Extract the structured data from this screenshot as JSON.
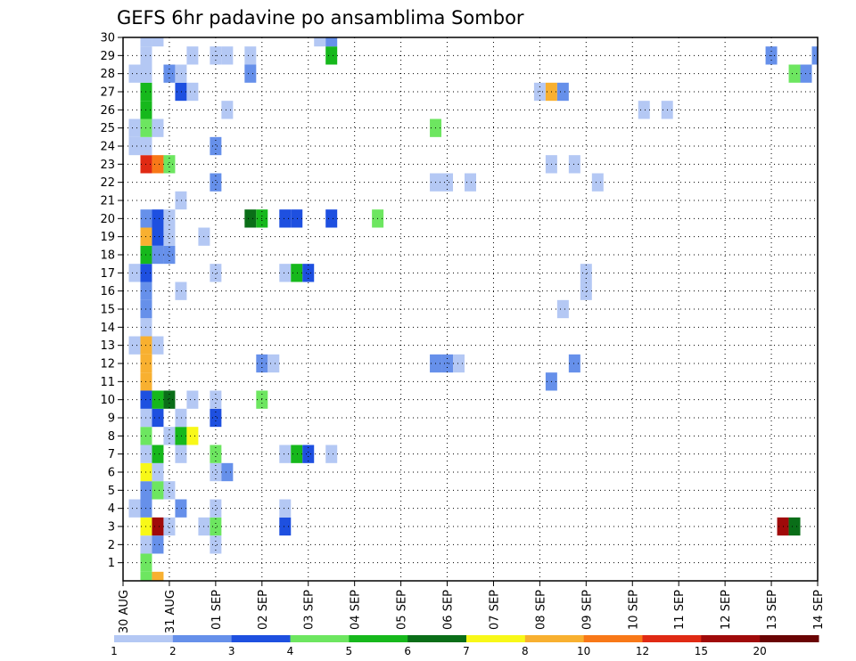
{
  "chart_data": {
    "type": "heatmap",
    "title": "GEFS 6hr padavine po ansamblima Sombor",
    "xlabel": "",
    "ylabel": "",
    "x_ticks": [
      "30 AUG",
      "31 AUG",
      "01 SEP",
      "02 SEP",
      "03 SEP",
      "04 SEP",
      "05 SEP",
      "06 SEP",
      "07 SEP",
      "08 SEP",
      "09 SEP",
      "10 SEP",
      "11 SEP",
      "12 SEP",
      "13 SEP",
      "14 SEP"
    ],
    "y_ticks": [
      "1",
      "2",
      "3",
      "4",
      "5",
      "6",
      "7",
      "8",
      "9",
      "10",
      "11",
      "12",
      "13",
      "14",
      "15",
      "16",
      "17",
      "18",
      "19",
      "20",
      "21",
      "22",
      "23",
      "24",
      "25",
      "26",
      "27",
      "28",
      "29",
      "30"
    ],
    "xlim": [
      0,
      60
    ],
    "ylim": [
      0,
      30
    ],
    "grid": true,
    "colorbar": {
      "labels": [
        "1",
        "2",
        "3",
        "4",
        "5",
        "6",
        "7",
        "8",
        "10",
        "12",
        "15",
        "20"
      ],
      "colors": [
        "#b4c8f4",
        "#6690ea",
        "#1e50e0",
        "#6de660",
        "#16b81c",
        "#0a6e18",
        "#f8f818",
        "#f8b030",
        "#f87818",
        "#e02a14",
        "#a00a0a",
        "#6a0404"
      ]
    },
    "cells": [
      [
        2,
        0,
        "#6de660"
      ],
      [
        3,
        0,
        "#f8b030"
      ],
      [
        3,
        -1,
        "#6690ea"
      ],
      [
        7,
        -1,
        "#b4c8f4"
      ],
      [
        8,
        -1,
        "#16b81c"
      ],
      [
        2,
        1,
        "#6de660"
      ],
      [
        2,
        2,
        "#b4c8f4"
      ],
      [
        3,
        2,
        "#6690ea"
      ],
      [
        8,
        2,
        "#b4c8f4"
      ],
      [
        2,
        3,
        "#f8f818"
      ],
      [
        3,
        3,
        "#a00a0a"
      ],
      [
        4,
        3,
        "#b4c8f4"
      ],
      [
        7,
        3,
        "#b4c8f4"
      ],
      [
        8,
        3,
        "#6de660"
      ],
      [
        14,
        3,
        "#1e50e0"
      ],
      [
        57,
        3,
        "#a00a0a"
      ],
      [
        58,
        3,
        "#0a6e18"
      ],
      [
        1,
        4,
        "#b4c8f4"
      ],
      [
        2,
        4,
        "#6690ea"
      ],
      [
        5,
        4,
        "#6690ea"
      ],
      [
        8,
        4,
        "#b4c8f4"
      ],
      [
        14,
        4,
        "#b4c8f4"
      ],
      [
        2,
        5,
        "#6690ea"
      ],
      [
        3,
        5,
        "#6de660"
      ],
      [
        4,
        5,
        "#b4c8f4"
      ],
      [
        2,
        6,
        "#f8f818"
      ],
      [
        3,
        6,
        "#b4c8f4"
      ],
      [
        8,
        6,
        "#b4c8f4"
      ],
      [
        9,
        6,
        "#6690ea"
      ],
      [
        2,
        7,
        "#b4c8f4"
      ],
      [
        3,
        7,
        "#16b81c"
      ],
      [
        5,
        7,
        "#b4c8f4"
      ],
      [
        8,
        7,
        "#6de660"
      ],
      [
        14,
        7,
        "#b4c8f4"
      ],
      [
        15,
        7,
        "#16b81c"
      ],
      [
        16,
        7,
        "#1e50e0"
      ],
      [
        18,
        7,
        "#b4c8f4"
      ],
      [
        2,
        8,
        "#6de660"
      ],
      [
        4,
        8,
        "#b4c8f4"
      ],
      [
        5,
        8,
        "#16b81c"
      ],
      [
        6,
        8,
        "#f8f818"
      ],
      [
        2,
        9,
        "#b4c8f4"
      ],
      [
        3,
        9,
        "#1e50e0"
      ],
      [
        5,
        9,
        "#b4c8f4"
      ],
      [
        8,
        9,
        "#1e50e0"
      ],
      [
        2,
        10,
        "#1e50e0"
      ],
      [
        3,
        10,
        "#16b81c"
      ],
      [
        4,
        10,
        "#0a6e18"
      ],
      [
        6,
        10,
        "#b4c8f4"
      ],
      [
        8,
        10,
        "#b4c8f4"
      ],
      [
        12,
        10,
        "#6de660"
      ],
      [
        2,
        11,
        "#f8b030"
      ],
      [
        37,
        11,
        "#6690ea"
      ],
      [
        2,
        12,
        "#f8b030"
      ],
      [
        12,
        12,
        "#6690ea"
      ],
      [
        13,
        12,
        "#b4c8f4"
      ],
      [
        27,
        12,
        "#6690ea"
      ],
      [
        28,
        12,
        "#6690ea"
      ],
      [
        29,
        12,
        "#b4c8f4"
      ],
      [
        39,
        12,
        "#6690ea"
      ],
      [
        1,
        13,
        "#b4c8f4"
      ],
      [
        2,
        13,
        "#f8b030"
      ],
      [
        3,
        13,
        "#b4c8f4"
      ],
      [
        2,
        14,
        "#b4c8f4"
      ],
      [
        2,
        15,
        "#6690ea"
      ],
      [
        38,
        15,
        "#b4c8f4"
      ],
      [
        2,
        16,
        "#6690ea"
      ],
      [
        5,
        16,
        "#b4c8f4"
      ],
      [
        40,
        16,
        "#b4c8f4"
      ],
      [
        1,
        17,
        "#b4c8f4"
      ],
      [
        2,
        17,
        "#1e50e0"
      ],
      [
        8,
        17,
        "#b4c8f4"
      ],
      [
        14,
        17,
        "#b4c8f4"
      ],
      [
        15,
        17,
        "#16b81c"
      ],
      [
        16,
        17,
        "#1e50e0"
      ],
      [
        40,
        17,
        "#b4c8f4"
      ],
      [
        2,
        18,
        "#16b81c"
      ],
      [
        3,
        18,
        "#6690ea"
      ],
      [
        4,
        18,
        "#6690ea"
      ],
      [
        2,
        19,
        "#f8b030"
      ],
      [
        3,
        19,
        "#1e50e0"
      ],
      [
        4,
        19,
        "#b4c8f4"
      ],
      [
        7,
        19,
        "#b4c8f4"
      ],
      [
        2,
        20,
        "#6690ea"
      ],
      [
        3,
        20,
        "#1e50e0"
      ],
      [
        4,
        20,
        "#b4c8f4"
      ],
      [
        11,
        20,
        "#0a6e18"
      ],
      [
        12,
        20,
        "#16b81c"
      ],
      [
        14,
        20,
        "#1e50e0"
      ],
      [
        15,
        20,
        "#1e50e0"
      ],
      [
        18,
        20,
        "#1e50e0"
      ],
      [
        22,
        20,
        "#6de660"
      ],
      [
        5,
        21,
        "#b4c8f4"
      ],
      [
        8,
        22,
        "#6690ea"
      ],
      [
        27,
        22,
        "#b4c8f4"
      ],
      [
        28,
        22,
        "#b4c8f4"
      ],
      [
        30,
        22,
        "#b4c8f4"
      ],
      [
        41,
        22,
        "#b4c8f4"
      ],
      [
        2,
        23,
        "#e02a14"
      ],
      [
        3,
        23,
        "#f87818"
      ],
      [
        4,
        23,
        "#6de660"
      ],
      [
        37,
        23,
        "#b4c8f4"
      ],
      [
        39,
        23,
        "#b4c8f4"
      ],
      [
        1,
        24,
        "#b4c8f4"
      ],
      [
        2,
        24,
        "#b4c8f4"
      ],
      [
        8,
        24,
        "#6690ea"
      ],
      [
        1,
        25,
        "#b4c8f4"
      ],
      [
        2,
        25,
        "#6de660"
      ],
      [
        3,
        25,
        "#b4c8f4"
      ],
      [
        27,
        25,
        "#6de660"
      ],
      [
        2,
        26,
        "#16b81c"
      ],
      [
        9,
        26,
        "#b4c8f4"
      ],
      [
        45,
        26,
        "#b4c8f4"
      ],
      [
        47,
        26,
        "#b4c8f4"
      ],
      [
        2,
        27,
        "#16b81c"
      ],
      [
        5,
        27,
        "#1e50e0"
      ],
      [
        6,
        27,
        "#b4c8f4"
      ],
      [
        36,
        27,
        "#b4c8f4"
      ],
      [
        37,
        27,
        "#f8b030"
      ],
      [
        38,
        27,
        "#6690ea"
      ],
      [
        1,
        28,
        "#b4c8f4"
      ],
      [
        2,
        28,
        "#b4c8f4"
      ],
      [
        4,
        28,
        "#6690ea"
      ],
      [
        5,
        28,
        "#b4c8f4"
      ],
      [
        11,
        28,
        "#6690ea"
      ],
      [
        58,
        28,
        "#6de660"
      ],
      [
        59,
        28,
        "#6690ea"
      ],
      [
        2,
        29,
        "#b4c8f4"
      ],
      [
        6,
        29,
        "#b4c8f4"
      ],
      [
        8,
        29,
        "#b4c8f4"
      ],
      [
        9,
        29,
        "#b4c8f4"
      ],
      [
        11,
        29,
        "#b4c8f4"
      ],
      [
        18,
        29,
        "#16b81c"
      ],
      [
        56,
        29,
        "#6690ea"
      ],
      [
        60,
        29,
        "#6690ea"
      ],
      [
        2,
        30,
        "#b4c8f4"
      ],
      [
        3,
        30,
        "#b4c8f4"
      ],
      [
        17,
        30,
        "#b4c8f4"
      ],
      [
        18,
        30,
        "#6690ea"
      ]
    ]
  }
}
